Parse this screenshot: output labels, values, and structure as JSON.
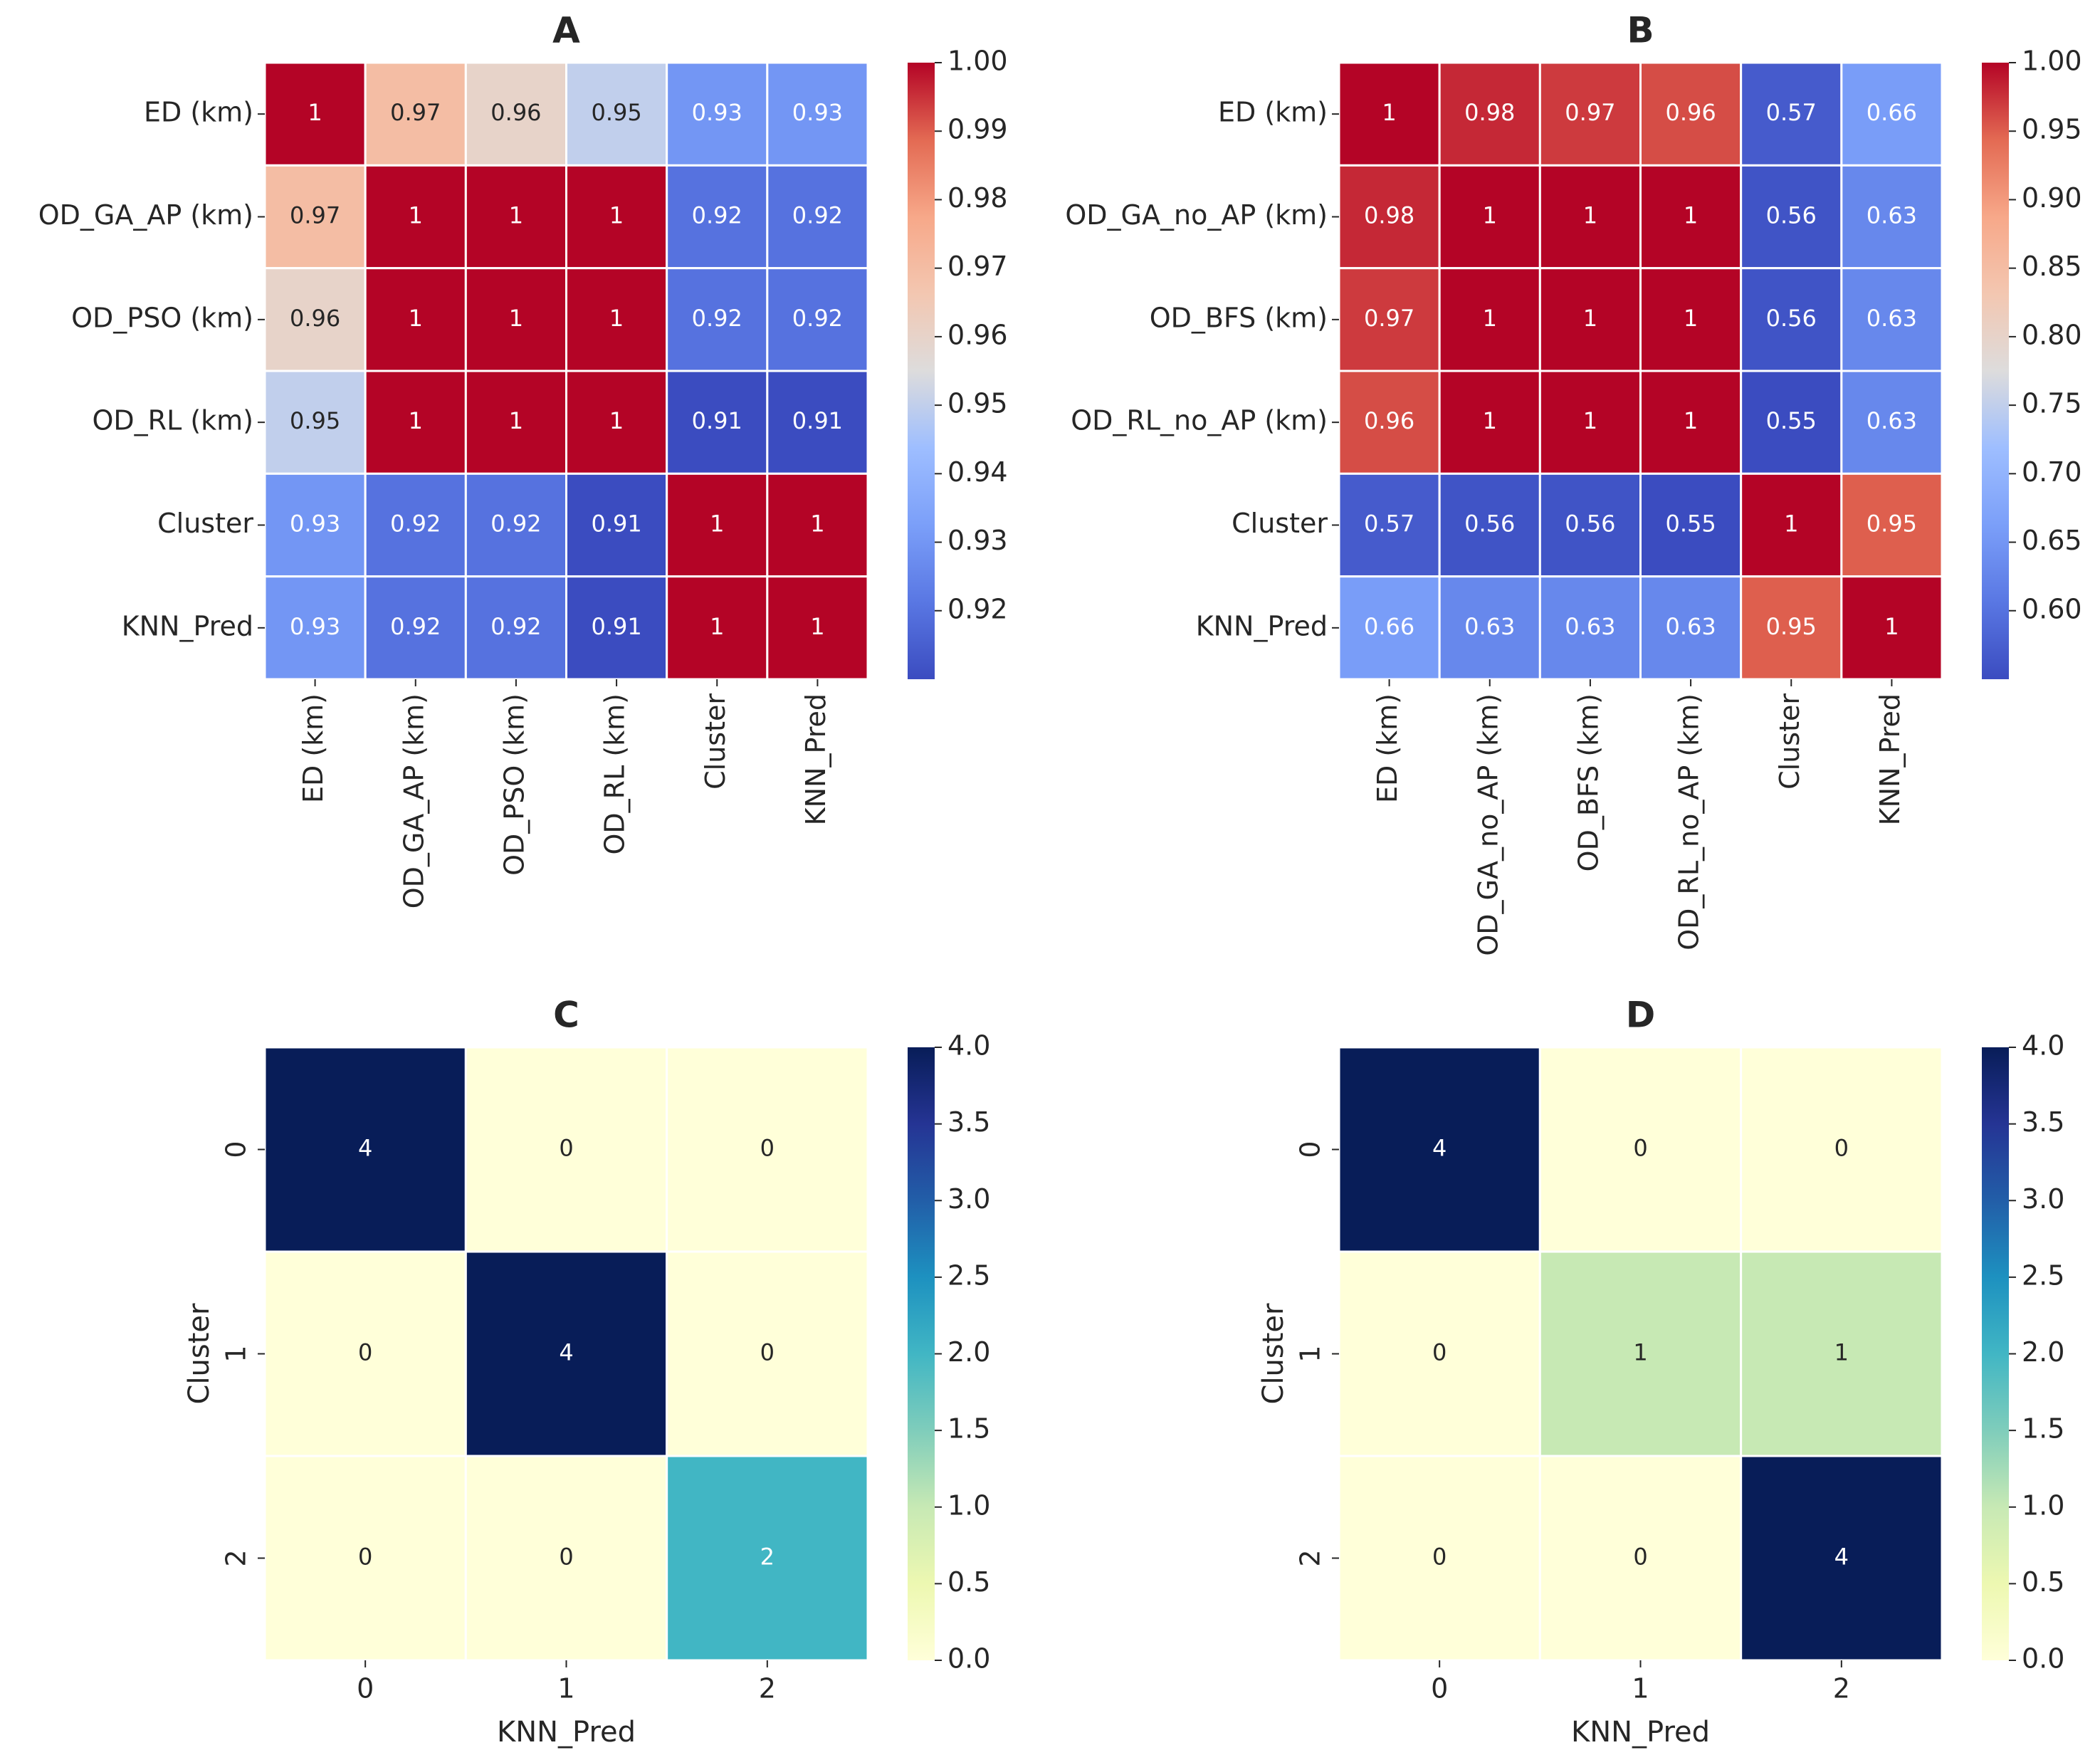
{
  "chart_data": [
    {
      "type": "heatmap",
      "title": "A",
      "cmap": "coolwarm",
      "label_rotation": "x",
      "x_categories": [
        "ED (km)",
        "OD_GA_AP (km)",
        "OD_PSO (km)",
        "OD_RL (km)",
        "Cluster",
        "KNN_Pred"
      ],
      "y_categories": [
        "ED (km)",
        "OD_GA_AP (km)",
        "OD_PSO (km)",
        "OD_RL (km)",
        "Cluster",
        "KNN_Pred"
      ],
      "values": [
        [
          1,
          0.97,
          0.96,
          0.95,
          0.93,
          0.93
        ],
        [
          0.97,
          1,
          1,
          1,
          0.92,
          0.92
        ],
        [
          0.96,
          1,
          1,
          1,
          0.92,
          0.92
        ],
        [
          0.95,
          1,
          1,
          1,
          0.91,
          0.91
        ],
        [
          0.93,
          0.92,
          0.92,
          0.91,
          1,
          1
        ],
        [
          0.93,
          0.92,
          0.92,
          0.91,
          1,
          1
        ]
      ],
      "clim": [
        0.91,
        1
      ],
      "cticks": [
        0.92,
        0.93,
        0.94,
        0.95,
        0.96,
        0.97,
        0.98,
        0.99,
        {
          "value": 1,
          "label": "1.00"
        }
      ]
    },
    {
      "type": "heatmap",
      "title": "B",
      "cmap": "coolwarm",
      "label_rotation": "x",
      "x_categories": [
        "ED (km)",
        "OD_GA_no_AP (km)",
        "OD_BFS (km)",
        "OD_RL_no_AP (km)",
        "Cluster",
        "KNN_Pred"
      ],
      "y_categories": [
        "ED (km)",
        "OD_GA_no_AP (km)",
        "OD_BFS (km)",
        "OD_RL_no_AP (km)",
        "Cluster",
        "KNN_Pred"
      ],
      "values": [
        [
          1,
          0.98,
          0.97,
          0.96,
          0.57,
          0.66
        ],
        [
          0.98,
          1,
          1,
          1,
          0.56,
          0.63
        ],
        [
          0.97,
          1,
          1,
          1,
          0.56,
          0.63
        ],
        [
          0.96,
          1,
          1,
          1,
          0.55,
          0.63
        ],
        [
          0.57,
          0.56,
          0.56,
          0.55,
          1,
          0.95
        ],
        [
          0.66,
          0.63,
          0.63,
          0.63,
          0.95,
          1
        ]
      ],
      "clim": [
        0.55,
        1
      ],
      "cticks": [
        {
          "value": 0.6,
          "label": "0.60"
        },
        0.65,
        {
          "value": 0.7,
          "label": "0.70"
        },
        0.75,
        {
          "value": 0.8,
          "label": "0.80"
        },
        0.85,
        {
          "value": 0.9,
          "label": "0.90"
        },
        0.95,
        {
          "value": 1,
          "label": "1.00"
        }
      ]
    },
    {
      "type": "heatmap",
      "title": "C",
      "cmap": "YlGnBu",
      "label_rotation": "y",
      "xlabel": "KNN_Pred",
      "ylabel": "Cluster",
      "x_categories": [
        "0",
        "1",
        "2"
      ],
      "y_categories": [
        "0",
        "1",
        "2"
      ],
      "values": [
        [
          4,
          0,
          0
        ],
        [
          0,
          4,
          0
        ],
        [
          0,
          0,
          2
        ]
      ],
      "clim": [
        0,
        4
      ],
      "cticks": [
        {
          "value": 0,
          "label": "0.0"
        },
        0.5,
        {
          "value": 1,
          "label": "1.0"
        },
        1.5,
        {
          "value": 2,
          "label": "2.0"
        },
        2.5,
        {
          "value": 3,
          "label": "3.0"
        },
        3.5,
        {
          "value": 4,
          "label": "4.0"
        }
      ]
    },
    {
      "type": "heatmap",
      "title": "D",
      "cmap": "YlGnBu",
      "label_rotation": "y",
      "xlabel": "KNN_Pred",
      "ylabel": "Cluster",
      "x_categories": [
        "0",
        "1",
        "2"
      ],
      "y_categories": [
        "0",
        "1",
        "2"
      ],
      "values": [
        [
          4,
          0,
          0
        ],
        [
          0,
          1,
          1
        ],
        [
          0,
          0,
          4
        ]
      ],
      "clim": [
        0,
        4
      ],
      "cticks": [
        {
          "value": 0,
          "label": "0.0"
        },
        0.5,
        {
          "value": 1,
          "label": "1.0"
        },
        1.5,
        {
          "value": 2,
          "label": "2.0"
        },
        2.5,
        {
          "value": 3,
          "label": "3.0"
        },
        3.5,
        {
          "value": 4,
          "label": "4.0"
        }
      ]
    }
  ]
}
